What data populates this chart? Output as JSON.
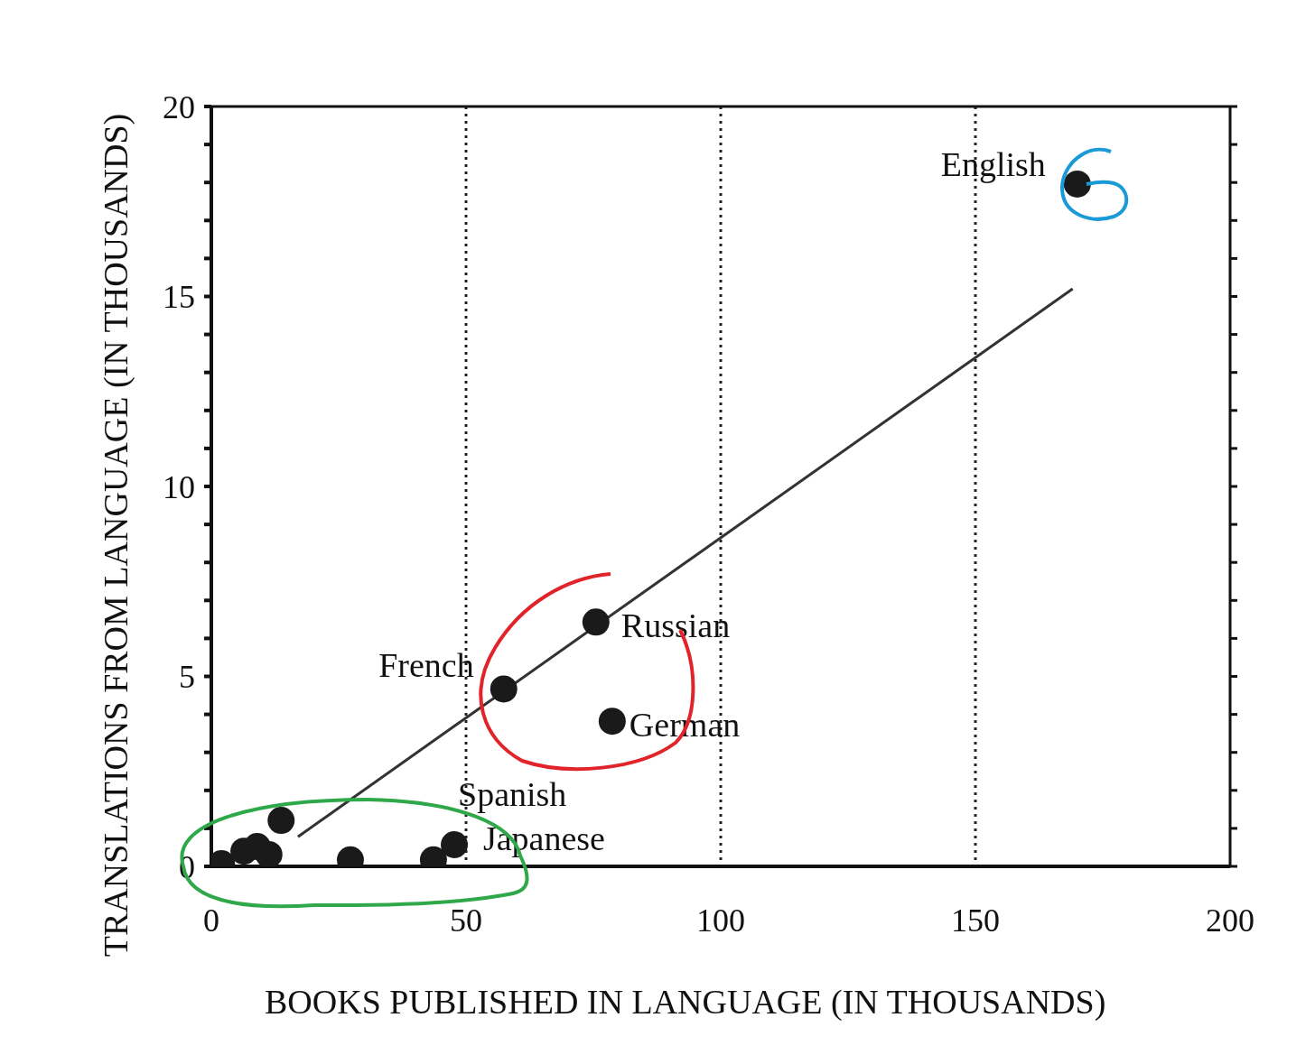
{
  "chart_data": {
    "type": "scatter",
    "xlabel": "BOOKS PUBLISHED IN LANGUAGE (IN THOUSANDS)",
    "ylabel": "TRANSLATIONS FROM LANGUAGE (IN THOUSANDS)",
    "xlim": [
      0,
      200
    ],
    "xticks": [
      0,
      50,
      100,
      150,
      200
    ],
    "ylim": [
      0,
      20
    ],
    "yticks": [
      0,
      {
        "value": 1,
        "label": null
      },
      {
        "value": 2,
        "label": null
      },
      {
        "value": 3,
        "label": null
      },
      {
        "value": 4,
        "label": null
      },
      5,
      {
        "value": 6,
        "label": null
      },
      {
        "value": 7,
        "label": null
      },
      {
        "value": 8,
        "label": null
      },
      {
        "value": 9,
        "label": null
      },
      10,
      {
        "value": 11,
        "label": null
      },
      {
        "value": 12,
        "label": null
      },
      {
        "value": 13,
        "label": null
      },
      {
        "value": 14,
        "label": null
      },
      15,
      {
        "value": 16,
        "label": null
      },
      {
        "value": 17,
        "label": null
      },
      {
        "value": 18,
        "label": null
      },
      {
        "value": 19,
        "label": null
      },
      20
    ],
    "grid": "x",
    "line_style": "solid",
    "series": [
      {
        "color": "#1a1a1a",
        "marker": "circle",
        "x": [
          2.0,
          6.4,
          9.0,
          11.3,
          13.7,
          27.3,
          43.6,
          47.7,
          57.4,
          75.5,
          78.7,
          170.0
        ],
        "values": [
          0.07,
          0.4,
          0.52,
          0.31,
          1.21,
          0.17,
          0.17,
          0.57,
          4.67,
          6.43,
          3.82,
          17.96
        ]
      },
      {
        "type": "line",
        "color": "#333333",
        "marker": "none",
        "x": [
          17,
          169.1
        ],
        "values": [
          0.78,
          15.2
        ]
      }
    ],
    "annotations": [
      {
        "text": "English",
        "x": 170.0,
        "y": 17.96
      },
      {
        "text": "Russian",
        "x": 75.5,
        "y": 6.43
      },
      {
        "text": "French",
        "x": 57.4,
        "y": 4.67
      },
      {
        "text": "German",
        "x": 78.7,
        "y": 3.82
      },
      {
        "text": "Spanish",
        "x": 47.7,
        "y": 0.57
      },
      {
        "text": "Japanese",
        "x": 43.6,
        "y": 0.17
      }
    ]
  }
}
